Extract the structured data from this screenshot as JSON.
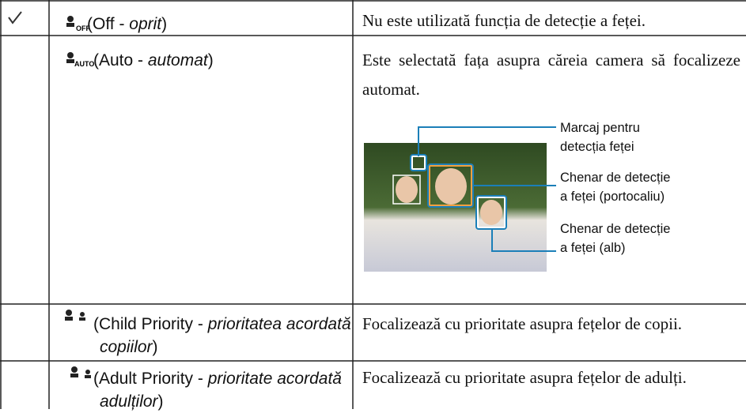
{
  "rows": [
    {
      "icon": "OFF",
      "mode": "(Off - ",
      "mode_emph": "oprit",
      "mode_end": ")",
      "description": "Nu este utilizată funcția de detecție a feței."
    },
    {
      "icon": "AUTO",
      "mode": "(Auto - ",
      "mode_emph": "automat",
      "mode_end": ")",
      "description": "Este selectată fața asupra căreia camera să focalizeze automat.",
      "callouts": [
        [
          "Marcaj pentru",
          "detecția feței"
        ],
        [
          "Chenar de detecție",
          "a feței (portocaliu)"
        ],
        [
          "Chenar de detecție",
          "a feței (alb)"
        ]
      ]
    },
    {
      "mode": "(Child Priority - ",
      "mode_emph": "prioritatea acordată copiilor",
      "mode_end": ")",
      "description": "Focalizează cu prioritate asupra fețelor de copii."
    },
    {
      "mode": "(Adult Priority - ",
      "mode_emph": "prioritate acordată adulților",
      "mode_end": ")",
      "description": "Focalizează cu prioritate asupra fețelor de adulți."
    }
  ]
}
